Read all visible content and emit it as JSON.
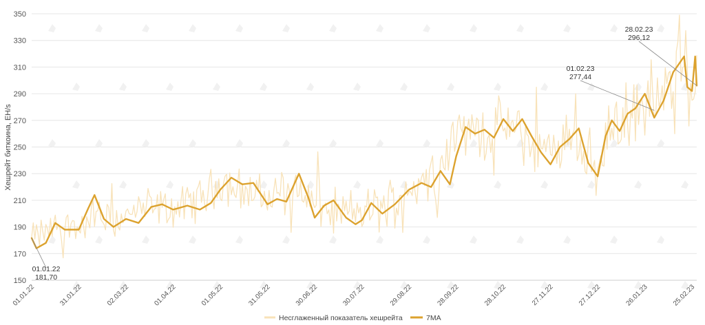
{
  "chart_data": {
    "type": "line",
    "ylabel": "Хешрейт биткоина, EH/s",
    "ylim": [
      150,
      350
    ],
    "y_ticks": [
      150,
      170,
      190,
      210,
      230,
      250,
      270,
      290,
      310,
      330,
      350
    ],
    "grid": "horizontal",
    "legend_position": "bottom-center",
    "x_tick_labels": [
      "01.01.22",
      "31.01.22",
      "02.03.22",
      "01.04.22",
      "01.05.22",
      "31.05.22",
      "30.06.22",
      "30.07.22",
      "29.08.22",
      "28.09.22",
      "28.10.22",
      "27.11.22",
      "27.12.22",
      "26.01.23",
      "25.02.23"
    ],
    "colors": {
      "raw": "#f8e2b8",
      "ma": "#dca22e",
      "grid": "#e6e6e6",
      "annotation_line": "#888888"
    },
    "series": [
      {
        "name": "Несглаженный показатель хешрейта",
        "points": [
          [
            "01.01.22",
            181.7
          ],
          [
            "10.01.22",
            186
          ],
          [
            "20.01.22",
            193
          ],
          [
            "31.01.22",
            188
          ],
          [
            "10.02.22",
            200
          ],
          [
            "20.02.22",
            194
          ],
          [
            "02.03.22",
            198
          ],
          [
            "15.03.22",
            205
          ],
          [
            "01.04.22",
            203
          ],
          [
            "15.04.22",
            209
          ],
          [
            "01.05.22",
            224
          ],
          [
            "15.05.22",
            218
          ],
          [
            "31.05.22",
            211
          ],
          [
            "15.06.22",
            224
          ],
          [
            "30.06.22",
            206
          ],
          [
            "15.07.22",
            200
          ],
          [
            "30.07.22",
            201
          ],
          [
            "15.08.22",
            206
          ],
          [
            "29.08.22",
            220
          ],
          [
            "15.09.22",
            231
          ],
          [
            "28.09.22",
            262
          ],
          [
            "15.10.22",
            261
          ],
          [
            "28.10.22",
            267
          ],
          [
            "10.11.22",
            257
          ],
          [
            "27.11.22",
            243
          ],
          [
            "10.12.22",
            264
          ],
          [
            "27.12.22",
            230
          ],
          [
            "05.01.23",
            268
          ],
          [
            "15.01.23",
            274
          ],
          [
            "26.01.23",
            280
          ],
          [
            "01.02.23",
            277.44
          ],
          [
            "10.02.23",
            295
          ],
          [
            "20.02.23",
            318
          ],
          [
            "25.02.23",
            298
          ],
          [
            "28.02.23",
            296.12
          ]
        ]
      },
      {
        "name": "7MA",
        "points": [
          [
            "01.01.22",
            181.7
          ],
          [
            "04.01.22",
            174
          ],
          [
            "10.01.22",
            178
          ],
          [
            "16.01.22",
            193
          ],
          [
            "22.01.22",
            188
          ],
          [
            "31.01.22",
            188
          ],
          [
            "06.02.22",
            204
          ],
          [
            "10.02.22",
            214
          ],
          [
            "16.02.22",
            196
          ],
          [
            "22.02.22",
            190
          ],
          [
            "02.03.22",
            196
          ],
          [
            "10.03.22",
            193
          ],
          [
            "18.03.22",
            205
          ],
          [
            "25.03.22",
            207
          ],
          [
            "01.04.22",
            203
          ],
          [
            "10.04.22",
            206
          ],
          [
            "18.04.22",
            203
          ],
          [
            "25.04.22",
            208
          ],
          [
            "01.05.22",
            218
          ],
          [
            "08.05.22",
            227
          ],
          [
            "15.05.22",
            222
          ],
          [
            "22.05.22",
            223
          ],
          [
            "31.05.22",
            207
          ],
          [
            "06.06.22",
            211
          ],
          [
            "12.06.22",
            209
          ],
          [
            "20.06.22",
            230
          ],
          [
            "26.06.22",
            212
          ],
          [
            "30.06.22",
            197
          ],
          [
            "06.07.22",
            206
          ],
          [
            "12.07.22",
            210
          ],
          [
            "20.07.22",
            197
          ],
          [
            "26.07.22",
            192
          ],
          [
            "30.07.22",
            195
          ],
          [
            "05.08.22",
            208
          ],
          [
            "12.08.22",
            200
          ],
          [
            "20.08.22",
            207
          ],
          [
            "29.08.22",
            218
          ],
          [
            "06.09.22",
            223
          ],
          [
            "12.09.22",
            220
          ],
          [
            "18.09.22",
            232
          ],
          [
            "24.09.22",
            222
          ],
          [
            "28.09.22",
            243
          ],
          [
            "04.10.22",
            265
          ],
          [
            "10.10.22",
            260
          ],
          [
            "16.10.22",
            263
          ],
          [
            "22.10.22",
            257
          ],
          [
            "28.10.22",
            271
          ],
          [
            "03.11.22",
            262
          ],
          [
            "09.11.22",
            271
          ],
          [
            "15.11.22",
            258
          ],
          [
            "21.11.22",
            246
          ],
          [
            "27.11.22",
            237
          ],
          [
            "03.12.22",
            250
          ],
          [
            "09.12.22",
            256
          ],
          [
            "15.12.22",
            264
          ],
          [
            "21.12.22",
            238
          ],
          [
            "27.12.22",
            228
          ],
          [
            "01.01.23",
            258
          ],
          [
            "05.01.23",
            270
          ],
          [
            "10.01.23",
            262
          ],
          [
            "15.01.23",
            275
          ],
          [
            "20.01.23",
            279
          ],
          [
            "26.01.23",
            290
          ],
          [
            "01.02.23",
            272
          ],
          [
            "07.02.23",
            285
          ],
          [
            "13.02.23",
            306
          ],
          [
            "20.02.23",
            318
          ],
          [
            "22.02.23",
            295
          ],
          [
            "25.02.23",
            292
          ],
          [
            "27.02.23",
            318
          ],
          [
            "28.02.23",
            296.12
          ]
        ]
      }
    ],
    "annotations": [
      {
        "date": "01.01.22",
        "value": 181.7,
        "label_date": "01.01.22",
        "label_value": "181,70"
      },
      {
        "date": "01.02.23",
        "value": 277.44,
        "label_date": "01.02.23",
        "label_value": "277,44"
      },
      {
        "date": "28.02.23",
        "value": 296.12,
        "label_date": "28.02.23",
        "label_value": "296,12"
      }
    ]
  }
}
